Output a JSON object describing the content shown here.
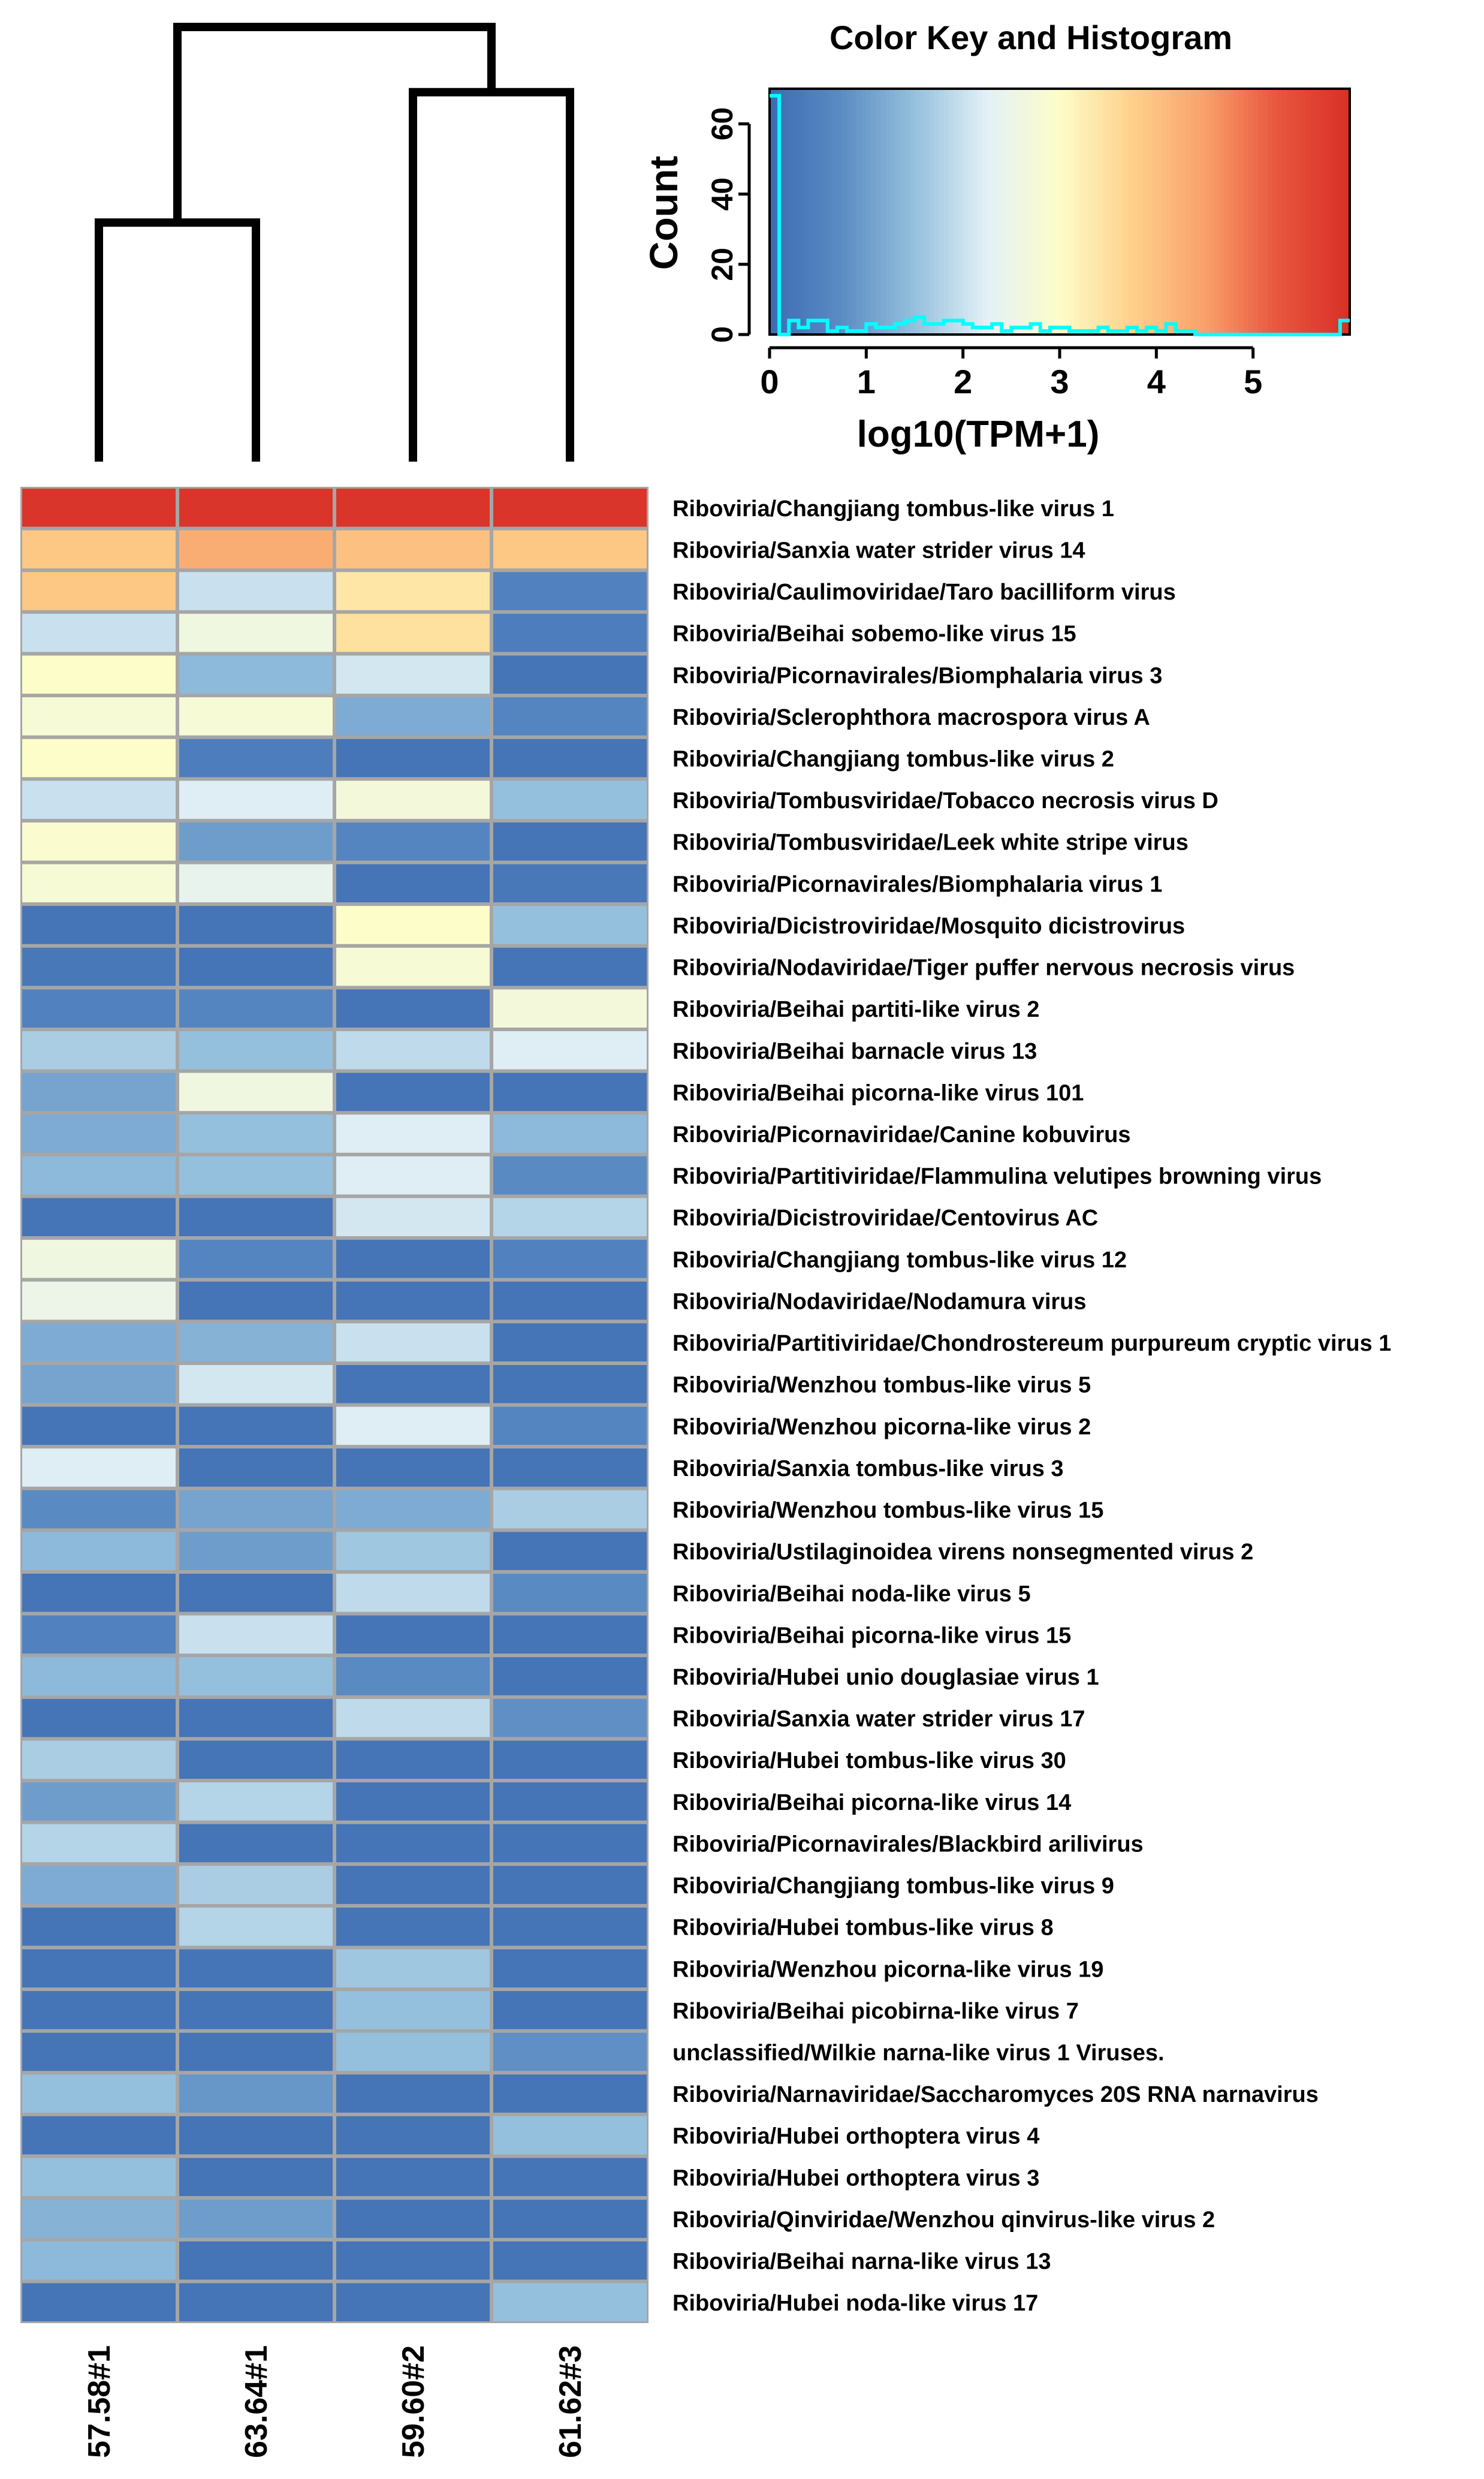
{
  "chart_data": [
    {
      "type": "heatmap",
      "value_label": "log10(TPM+1)",
      "columns": [
        "57.58#1",
        "63.64#1",
        "59.60#2",
        "61.62#3"
      ],
      "rows": [
        "Riboviria/Changjiang tombus-like virus 1",
        "Riboviria/Sanxia water strider virus 14",
        "Riboviria/Caulimoviridae/Taro bacilliform virus",
        "Riboviria/Beihai sobemo-like virus 15",
        "Riboviria/Picornavirales/Biomphalaria virus 3",
        "Riboviria/Sclerophthora macrospora virus A",
        "Riboviria/Changjiang tombus-like virus 2",
        "Riboviria/Tombusviridae/Tobacco necrosis virus D",
        "Riboviria/Tombusviridae/Leek white stripe virus",
        "Riboviria/Picornavirales/Biomphalaria virus 1",
        "Riboviria/Dicistroviridae/Mosquito dicistrovirus",
        "Riboviria/Nodaviridae/Tiger puffer nervous necrosis virus",
        "Riboviria/Beihai partiti-like virus 2",
        "Riboviria/Beihai barnacle virus 13",
        "Riboviria/Beihai picorna-like virus 101",
        "Riboviria/Picornaviridae/Canine kobuvirus",
        "Riboviria/Partitiviridae/Flammulina velutipes browning virus",
        "Riboviria/Dicistroviridae/Centovirus AC",
        "Riboviria/Changjiang tombus-like virus 12",
        "Riboviria/Nodaviridae/Nodamura virus",
        "Riboviria/Partitiviridae/Chondrostereum purpureum cryptic virus 1",
        "Riboviria/Wenzhou tombus-like virus 5",
        "Riboviria/Wenzhou picorna-like virus 2",
        "Riboviria/Sanxia tombus-like virus 3",
        "Riboviria/Wenzhou tombus-like virus 15",
        "Riboviria/Ustilaginoidea virens nonsegmented virus 2",
        "Riboviria/Beihai noda-like virus 5",
        "Riboviria/Beihai picorna-like virus 15",
        "Riboviria/Hubei unio douglasiae virus 1",
        "Riboviria/Sanxia water strider virus 17",
        "Riboviria/Hubei tombus-like virus 30",
        "Riboviria/Beihai picorna-like virus 14",
        "Riboviria/Picornavirales/Blackbird arilivirus",
        "Riboviria/Changjiang tombus-like virus 9",
        "Riboviria/Hubei tombus-like virus 8",
        "Riboviria/Wenzhou picorna-like virus 19",
        "Riboviria/Beihai picobirna-like virus 7",
        "unclassified/Wilkie narna-like virus 1 Viruses.",
        "Riboviria/Narnaviridae/Saccharomyces 20S RNA narnavirus",
        "Riboviria/Hubei orthoptera virus 4",
        "Riboviria/Hubei orthoptera virus 3",
        "Riboviria/Qinviridae/Wenzhou qinvirus-like virus 2",
        "Riboviria/Beihai narna-like virus 13",
        "Riboviria/Hubei noda-like virus 17"
      ],
      "values": [
        [
          5.9,
          5.9,
          5.9,
          5.9
        ],
        [
          3.9,
          4.3,
          4.0,
          3.9
        ],
        [
          3.9,
          2.0,
          3.4,
          0.5
        ],
        [
          2.0,
          2.6,
          3.5,
          0.4
        ],
        [
          3.0,
          1.4,
          2.1,
          0.2
        ],
        [
          2.8,
          2.8,
          1.2,
          0.6
        ],
        [
          3.0,
          0.4,
          0.2,
          0.2
        ],
        [
          2.0,
          2.2,
          2.7,
          1.5
        ],
        [
          2.9,
          1.0,
          0.6,
          0.2
        ],
        [
          2.8,
          2.4,
          0.2,
          0.3
        ],
        [
          0.2,
          0.2,
          3.0,
          1.5
        ],
        [
          0.3,
          0.2,
          2.8,
          0.2
        ],
        [
          0.5,
          0.6,
          0.2,
          2.7
        ],
        [
          1.7,
          1.5,
          1.9,
          2.2
        ],
        [
          1.1,
          2.6,
          0.2,
          0.2
        ],
        [
          1.2,
          1.5,
          2.2,
          1.4
        ],
        [
          1.4,
          1.5,
          2.2,
          0.7
        ],
        [
          0.2,
          0.2,
          2.1,
          1.8
        ],
        [
          2.6,
          0.6,
          0.2,
          0.5
        ],
        [
          2.5,
          0.2,
          0.2,
          0.2
        ],
        [
          1.2,
          1.3,
          2.0,
          0.2
        ],
        [
          1.1,
          2.1,
          0.2,
          0.2
        ],
        [
          0.2,
          0.2,
          2.2,
          0.6
        ],
        [
          2.2,
          0.2,
          0.2,
          0.2
        ],
        [
          0.7,
          1.1,
          1.2,
          1.7
        ],
        [
          1.4,
          1.0,
          1.6,
          0.2
        ],
        [
          0.2,
          0.2,
          1.9,
          0.7
        ],
        [
          0.5,
          2.0,
          0.2,
          0.2
        ],
        [
          1.4,
          1.5,
          0.7,
          0.2
        ],
        [
          0.2,
          0.2,
          1.9,
          0.8
        ],
        [
          1.7,
          0.2,
          0.2,
          0.2
        ],
        [
          1.0,
          1.8,
          0.2,
          0.2
        ],
        [
          1.8,
          0.2,
          0.2,
          0.2
        ],
        [
          1.2,
          1.7,
          0.2,
          0.2
        ],
        [
          0.2,
          1.8,
          0.2,
          0.2
        ],
        [
          0.2,
          0.2,
          1.6,
          0.2
        ],
        [
          0.2,
          0.2,
          1.5,
          0.2
        ],
        [
          0.2,
          0.2,
          1.5,
          0.8
        ],
        [
          1.5,
          0.9,
          0.2,
          0.2
        ],
        [
          0.2,
          0.2,
          0.2,
          1.5
        ],
        [
          1.5,
          0.2,
          0.2,
          0.2
        ],
        [
          1.3,
          1.0,
          0.2,
          0.2
        ],
        [
          1.4,
          0.2,
          0.2,
          0.2
        ],
        [
          0.2,
          0.2,
          0.2,
          1.5
        ]
      ],
      "color_range": [
        0,
        6
      ],
      "colormap": [
        "#3d6bb3",
        "#5b8cc3",
        "#95c0dd",
        "#e3f1f6",
        "#fdfdc9",
        "#fed18a",
        "#f9a06b",
        "#e8563d",
        "#d73027"
      ],
      "column_dendrogram": {
        "leaf_order": [
          "57.58#1",
          "63.64#1",
          "59.60#2",
          "61.62#3"
        ],
        "merges": [
          {
            "left": "57.58#1",
            "right": "63.64#1",
            "height": 0.55
          },
          {
            "left": "59.60#2",
            "right": "61.62#3",
            "height": 0.85
          },
          {
            "left": "cluster-1",
            "right": "cluster-2",
            "height": 1.0
          }
        ]
      }
    },
    {
      "type": "histogram",
      "title": "Color Key and Histogram",
      "xlabel": "log10(TPM+1)",
      "ylabel": "Count",
      "xlim": [
        0,
        6
      ],
      "ylim": [
        0,
        70
      ],
      "x_ticks": [
        0,
        1,
        2,
        3,
        4,
        5
      ],
      "y_ticks": [
        0,
        20,
        40,
        60
      ],
      "hist_color": "#00ffff",
      "bins": [
        0,
        0.1,
        0.2,
        0.3,
        0.4,
        0.5,
        0.6,
        0.7,
        0.8,
        0.9,
        1.0,
        1.1,
        1.2,
        1.3,
        1.4,
        1.5,
        1.6,
        1.7,
        1.8,
        1.9,
        2.0,
        2.1,
        2.2,
        2.3,
        2.4,
        2.5,
        2.6,
        2.7,
        2.8,
        2.9,
        3.0,
        3.1,
        3.2,
        3.3,
        3.4,
        3.5,
        3.6,
        3.7,
        3.8,
        3.9,
        4.0,
        4.1,
        4.2,
        4.3,
        4.4,
        4.5,
        4.6,
        4.7,
        4.8,
        4.9,
        5.0,
        5.1,
        5.2,
        5.3,
        5.4,
        5.5,
        5.6,
        5.7,
        5.8,
        5.9,
        6.0
      ],
      "counts": [
        68,
        0,
        4,
        2,
        4,
        4,
        1,
        2,
        1,
        1,
        3,
        2,
        2,
        3,
        4,
        5,
        3,
        3,
        4,
        4,
        3,
        2,
        2,
        3,
        1,
        2,
        2,
        3,
        1,
        2,
        2,
        1,
        1,
        1,
        2,
        1,
        1,
        2,
        1,
        2,
        1,
        3,
        1,
        1,
        0,
        0,
        0,
        0,
        0,
        0,
        0,
        0,
        0,
        0,
        0,
        0,
        0,
        0,
        0,
        4
      ]
    }
  ]
}
